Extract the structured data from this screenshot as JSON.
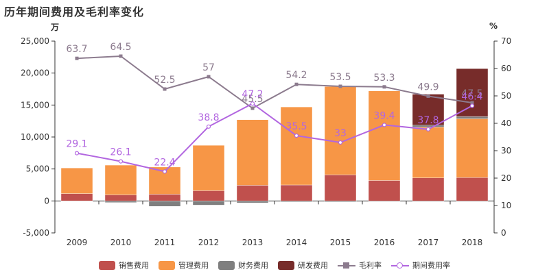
{
  "title": "历年期间费用及毛利率变化",
  "left_unit": "万",
  "right_unit": "%",
  "colors": {
    "sales": "#c0504d",
    "admin": "#f79646",
    "finance": "#7f7f7f",
    "rnd": "#772c2a",
    "gross_margin": "#8c7b8e",
    "expense_ratio": "#b266e0"
  },
  "chart_data": {
    "type": "bar",
    "stacked": true,
    "categories": [
      "2009",
      "2010",
      "2011",
      "2012",
      "2013",
      "2014",
      "2015",
      "2016",
      "2017",
      "2018"
    ],
    "y_left": {
      "range": [
        -5000,
        25000
      ],
      "ticks": [
        "-5,000",
        "0",
        "5,000",
        "10,000",
        "15,000",
        "20,000",
        "25,000"
      ]
    },
    "y_right": {
      "range": [
        0,
        70
      ],
      "ticks": [
        "0",
        "10",
        "20",
        "30",
        "40",
        "50",
        "60",
        "70"
      ]
    },
    "series": [
      {
        "name": "销售费用",
        "values": [
          1150,
          950,
          1050,
          1600,
          2450,
          2500,
          4100,
          3200,
          3600,
          3650
        ]
      },
      {
        "name": "管理费用",
        "values": [
          4000,
          4650,
          4250,
          7100,
          10250,
          12200,
          13800,
          14000,
          7950,
          9200
        ]
      },
      {
        "name": "财务费用",
        "values": [
          -50,
          -250,
          -850,
          -650,
          -300,
          -150,
          -150,
          0,
          300,
          350
        ]
      },
      {
        "name": "研发费用",
        "values": [
          0,
          0,
          0,
          0,
          0,
          0,
          0,
          0,
          4850,
          7500
        ]
      }
    ],
    "lines": [
      {
        "name": "毛利率",
        "axis": "right",
        "values": [
          63.7,
          64.5,
          52.5,
          57,
          45.5,
          54.2,
          53.5,
          53.3,
          49.9,
          47.5
        ],
        "labels": [
          "63.7",
          "64.5",
          "52.5",
          "57",
          "45.5",
          "54.2",
          "53.5",
          "53.3",
          "49.9",
          "47.5"
        ]
      },
      {
        "name": "期间费用率",
        "axis": "right",
        "values": [
          29.1,
          26.1,
          22.4,
          38.8,
          47.2,
          35.5,
          33,
          39.4,
          37.8,
          46.4
        ],
        "labels": [
          "29.1",
          "26.1",
          "22.4",
          "38.8",
          "47.2",
          "35.5",
          "33",
          "39.4",
          "37.8",
          "46.4"
        ]
      }
    ],
    "legend_position": "bottom"
  }
}
